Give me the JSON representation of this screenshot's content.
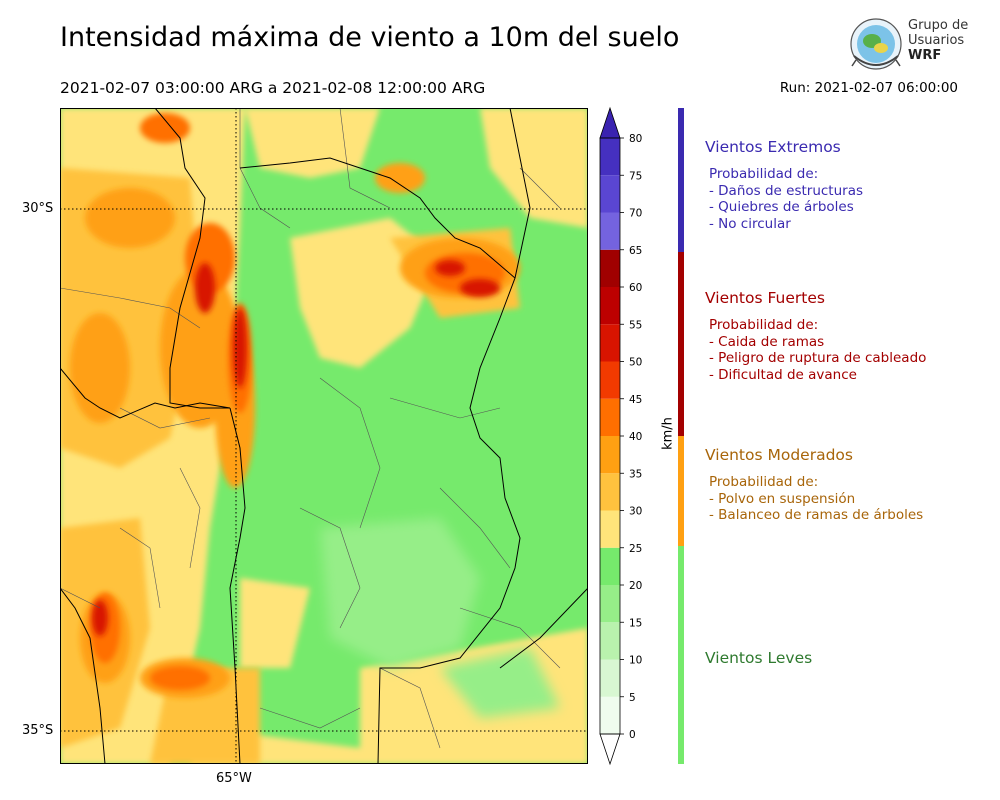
{
  "header": {
    "title": "Intensidad máxima de viento a 10m del suelo",
    "period": "2021-02-07 03:00:00 ARG  a  2021-02-08 12:00:00 ARG",
    "run": "Run: 2021-02-07 06:00:00"
  },
  "logo": {
    "line1": "Grupo de",
    "line2": "Usuarios",
    "line3": "WRF"
  },
  "map": {
    "lat_labels": [
      "30°S",
      "35°S"
    ],
    "lon_labels": [
      "65°W"
    ],
    "grid_style": "dotted"
  },
  "colorbar": {
    "unit": "km/h",
    "ticks": [
      "0",
      "5",
      "10",
      "15",
      "20",
      "25",
      "30",
      "35",
      "40",
      "45",
      "50",
      "55",
      "60",
      "65",
      "70",
      "75",
      "80"
    ],
    "levels": [
      {
        "from": 0,
        "to": 5,
        "color": "#effcee"
      },
      {
        "from": 5,
        "to": 10,
        "color": "#d8f7d2"
      },
      {
        "from": 10,
        "to": 15,
        "color": "#b9f2ad"
      },
      {
        "from": 15,
        "to": 20,
        "color": "#96ee88"
      },
      {
        "from": 20,
        "to": 25,
        "color": "#76ea6c"
      },
      {
        "from": 25,
        "to": 30,
        "color": "#ffe47a"
      },
      {
        "from": 30,
        "to": 35,
        "color": "#ffc23e"
      },
      {
        "from": 35,
        "to": 40,
        "color": "#ffa012"
      },
      {
        "from": 40,
        "to": 45,
        "color": "#ff6f00"
      },
      {
        "from": 45,
        "to": 50,
        "color": "#f23a00"
      },
      {
        "from": 50,
        "to": 55,
        "color": "#d81400"
      },
      {
        "from": 55,
        "to": 60,
        "color": "#bd0000"
      },
      {
        "from": 60,
        "to": 65,
        "color": "#a00000"
      },
      {
        "from": 65,
        "to": 70,
        "color": "#7463df"
      },
      {
        "from": 70,
        "to": 75,
        "color": "#5a46d2"
      },
      {
        "from": 75,
        "to": 80,
        "color": "#4530c0"
      }
    ],
    "extend_max_color": "#3a23b0",
    "extend_min_color": "#ffffff"
  },
  "categories": [
    {
      "id": "extremos",
      "name": "Vientos Extremos",
      "color": "#3a2ab0",
      "desc_title": "Probabilidad de:",
      "items": [
        "- Daños de estructuras",
        "- Quiebres de árboles",
        "- No circular"
      ]
    },
    {
      "id": "fuertes",
      "name": "Vientos Fuertes",
      "color": "#a30000",
      "desc_title": "Probabilidad de:",
      "items": [
        "- Caida de ramas",
        "- Peligro de ruptura de cableado",
        "- Dificultad de avance"
      ]
    },
    {
      "id": "moderados",
      "name": "Vientos Moderados",
      "color": "#a8650a",
      "desc_title": "Probabilidad de:",
      "items": [
        "- Polvo en suspensión",
        "- Balanceo de ramas de árboles"
      ]
    },
    {
      "id": "leves",
      "name": "Vientos Leves",
      "color": "#2f7a2f",
      "desc_title": "",
      "items": []
    }
  ],
  "stripe_colors": {
    "extremos": "#3a2ab0",
    "fuertes": "#a30000",
    "moderados": "#ffa012",
    "leves": "#76ea6c"
  }
}
